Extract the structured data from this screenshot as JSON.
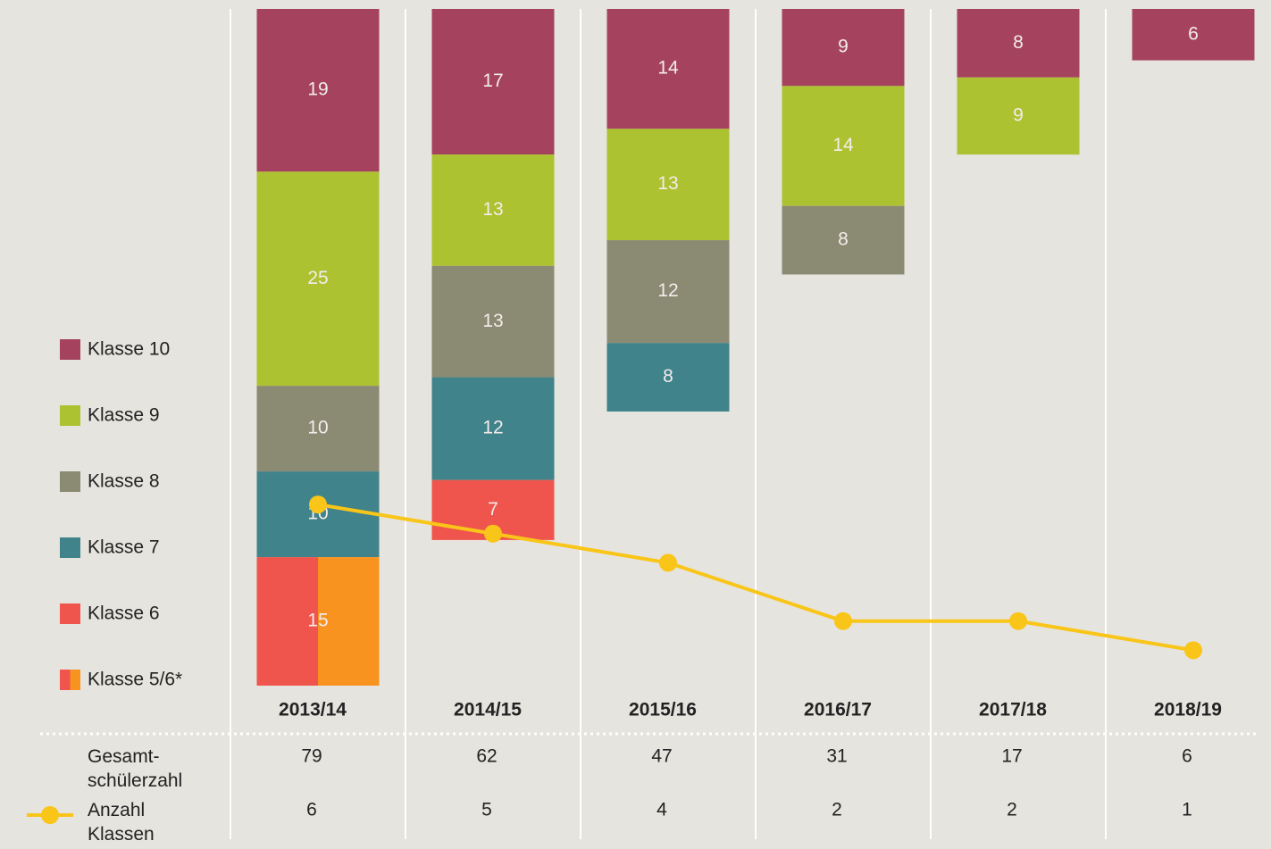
{
  "chart_data": {
    "type": "bar",
    "categories": [
      "2013/14",
      "2014/15",
      "2015/16",
      "2016/17",
      "2017/18",
      "2018/19"
    ],
    "ylim": [
      0,
      79
    ],
    "y2lim": [
      0,
      23
    ],
    "series": [
      {
        "name": "Klasse 10",
        "color": "#a5435e",
        "values": [
          19,
          17,
          14,
          9,
          8,
          6
        ]
      },
      {
        "name": "Klasse 9",
        "color": "#adc230",
        "values": [
          25,
          13,
          13,
          14,
          9,
          null
        ]
      },
      {
        "name": "Klasse 8",
        "color": "#8b8a72",
        "values": [
          10,
          13,
          12,
          8,
          null,
          null
        ]
      },
      {
        "name": "Klasse 7",
        "color": "#40838a",
        "values": [
          10,
          12,
          8,
          null,
          null,
          null
        ]
      },
      {
        "name": "Klasse 6",
        "color": "#ef554c",
        "values": [
          null,
          7,
          null,
          null,
          null,
          null
        ]
      },
      {
        "name": "Klasse 5/6*",
        "color": [
          "#ef554c",
          "#f7931e"
        ],
        "values": [
          15,
          null,
          null,
          null,
          null,
          null
        ]
      },
      {
        "name": "Anzahl\nKlassen",
        "type": "line",
        "axis": "y2",
        "color": "#f9c518",
        "values": [
          6,
          5,
          4,
          2,
          2,
          1
        ]
      }
    ],
    "totals": {
      "name": "Gesamt-\nschülerzahl",
      "values": [
        79,
        62,
        47,
        31,
        17,
        6
      ]
    }
  }
}
